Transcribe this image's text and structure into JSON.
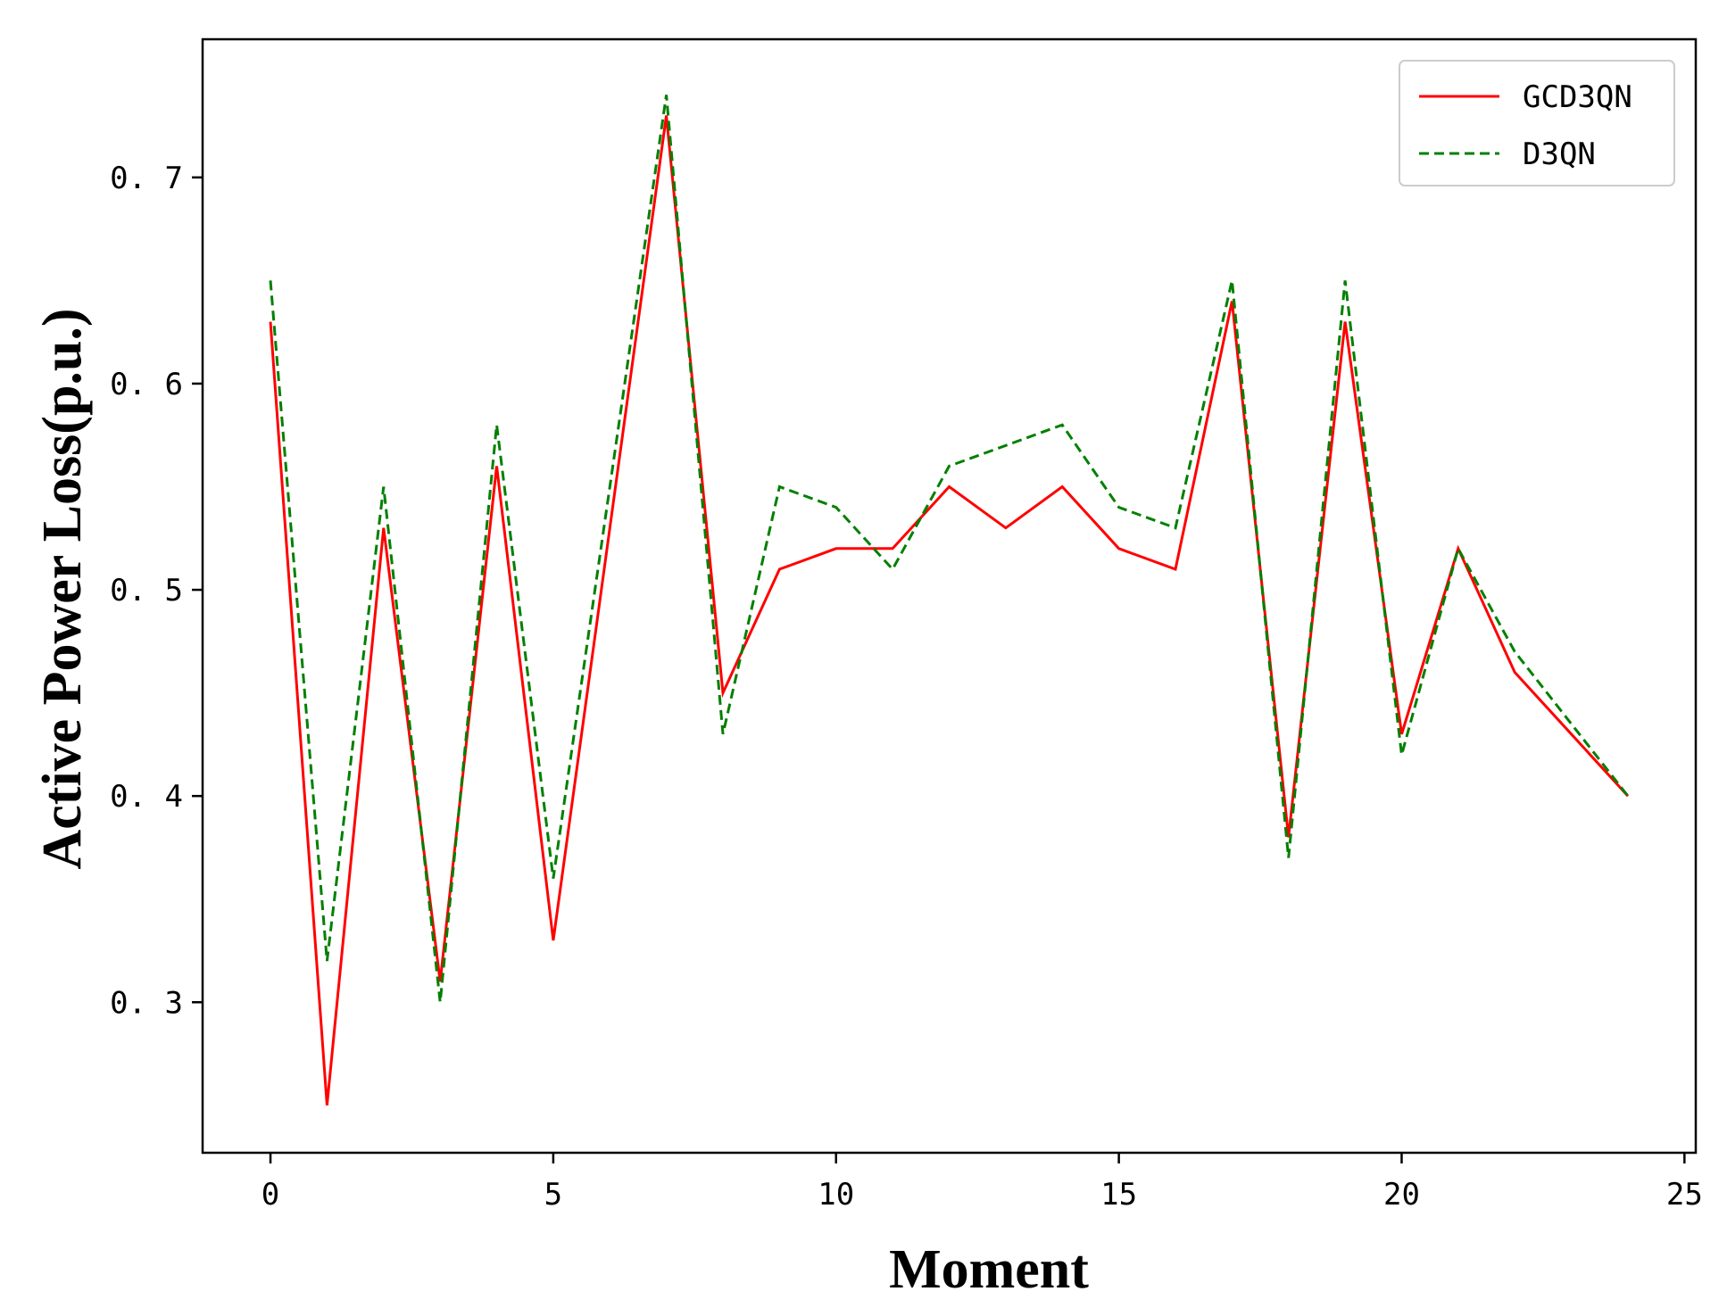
{
  "chart_data": {
    "type": "line",
    "title": "",
    "xlabel": "Moment",
    "ylabel": "Active Power Loss(p.u.)",
    "xlim": [
      -1.2,
      25.2
    ],
    "ylim": [
      0.227,
      0.767
    ],
    "xticks": [
      0,
      5,
      10,
      15,
      20,
      25
    ],
    "yticks": [
      0.3,
      0.4,
      0.5,
      0.6,
      0.7
    ],
    "xtick_labels": [
      "0",
      "5",
      "10",
      "15",
      "20",
      "25"
    ],
    "ytick_labels": [
      "0. 3",
      "0. 4",
      "0. 5",
      "0. 6",
      "0. 7"
    ],
    "grid": false,
    "legend_position": "top-right",
    "x": [
      0,
      1,
      2,
      3,
      4,
      5,
      6,
      7,
      8,
      9,
      10,
      11,
      12,
      13,
      14,
      15,
      16,
      17,
      18,
      19,
      20,
      21,
      22,
      23,
      24
    ],
    "series": [
      {
        "name": "GCD3QN",
        "color": "#ff0000",
        "style": "solid",
        "values": [
          0.63,
          0.25,
          0.53,
          0.31,
          0.56,
          0.33,
          0.53,
          0.73,
          0.45,
          0.51,
          0.52,
          0.52,
          0.55,
          0.53,
          0.55,
          0.52,
          0.51,
          0.64,
          0.38,
          0.63,
          0.43,
          0.52,
          0.46,
          0.43,
          0.4
        ]
      },
      {
        "name": "D3QN",
        "color": "#008000",
        "style": "dashed",
        "values": [
          0.65,
          0.32,
          0.55,
          0.3,
          0.58,
          0.36,
          0.55,
          0.74,
          0.43,
          0.55,
          0.54,
          0.51,
          0.56,
          0.57,
          0.58,
          0.54,
          0.53,
          0.65,
          0.37,
          0.65,
          0.42,
          0.52,
          0.47,
          0.435,
          0.4
        ]
      }
    ]
  }
}
